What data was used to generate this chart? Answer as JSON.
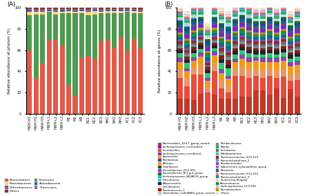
{
  "categories": [
    "HWH-H1",
    "HWH-H2",
    "HWH-H3",
    "HWH-L1",
    "HWH-L2",
    "HWH-L3",
    "M1",
    "M2",
    "M3",
    "NC1",
    "NC2",
    "NC3",
    "NH1",
    "NH2",
    "NH3",
    "PC1",
    "PC2",
    "PC3"
  ],
  "panel_A": {
    "title": "(A)",
    "ylabel": "Relative abundance at phylum (%)",
    "series_order": [
      "Bacteroidetes",
      "Firmicutes",
      "Proteobacteria",
      "Actinobacteria",
      "Deferribacteres",
      "Tenericutes",
      "Others"
    ],
    "series": {
      "Bacteroidetes": [
        60,
        34,
        48,
        70,
        70,
        65,
        27,
        17,
        53,
        55,
        52,
        69,
        70,
        63,
        72,
        60,
        71,
        62
      ],
      "Firmicutes": [
        33,
        60,
        46,
        26,
        24,
        30,
        68,
        78,
        42,
        38,
        42,
        26,
        25,
        32,
        23,
        36,
        24,
        33
      ],
      "Proteobacteria": [
        3,
        2,
        2,
        1,
        2,
        1,
        2,
        1,
        2,
        3,
        3,
        1,
        2,
        2,
        2,
        1,
        2,
        1
      ],
      "Actinobacteria": [
        2,
        1,
        1,
        1,
        1,
        2,
        1,
        1,
        1,
        1,
        1,
        1,
        1,
        1,
        1,
        1,
        1,
        1
      ],
      "Deferribacteres": [
        0.5,
        0.5,
        0.5,
        0.5,
        0.5,
        0.5,
        0.5,
        0.5,
        0.5,
        0.5,
        1,
        0.5,
        0.5,
        0.5,
        0.5,
        0.5,
        0.5,
        0.5
      ],
      "Tenericutes": [
        0.5,
        0.5,
        0.5,
        0.5,
        0.5,
        0.5,
        0.5,
        0.5,
        0.5,
        1,
        0.5,
        0.5,
        0.5,
        0.5,
        0.5,
        0.5,
        0.5,
        0.5
      ],
      "Others": [
        1,
        2,
        2,
        1.5,
        2,
        1.5,
        1,
        2.5,
        1,
        2,
        1,
        2,
        1,
        1,
        1.5,
        1.5,
        1,
        2.5
      ]
    },
    "colors": {
      "Bacteroidetes": "#E05A4A",
      "Firmicutes": "#4E9A51",
      "Proteobacteria": "#F0DC78",
      "Actinobacteria": "#3B5BA8",
      "Deferribacteres": "#7B5EA7",
      "Tenericutes": "#9B6EA7",
      "Others": "#8B3A2A"
    },
    "legend_order": [
      "Bacteroidetes",
      "Proteobacteria",
      "Deferribacteres",
      "Others",
      "Firmicutes",
      "Actinobacteria",
      "Tenericutes"
    ]
  },
  "panel_B": {
    "title": "(B)",
    "ylabel": "Relative abundance at genus (%)",
    "series_order": [
      "Bacteroidales_S24-7_group_norank",
      "Lactobacillus",
      "Bacteroides",
      "Alistipes",
      "Prevotellaceae_UCG-001",
      "Lachnospiraceae_NK4A136_group",
      "Alloprevotella",
      "Ruminococcus_1",
      "Muribaculaceae",
      "Turicibacter",
      "Ruminococcaceae_UCG-014",
      "Parabacteroides",
      "Roseburia",
      "Ruminoclostridiium_9",
      "Anaerostuncus",
      "Faecalibaculum",
      "Lachnospiraceae_unclassified",
      "Lachnospiraceae_uncultured",
      "Romboutsia",
      "Odoribacter",
      "Prevotellaceae_RCl_gut_group",
      "Helicobacter",
      "Desulfovibrio",
      "Clostridiales_vadinBB60_group_norank",
      "Blautia",
      "Bifidobacterium",
      "Ruminoclostridiium_5",
      "Eubacterium_xylanophilum_group",
      "Ruminococcaceae_UCG-013",
      "Escherichia-Shigella",
      "Lachnospiraceae_UCG-001",
      "Others"
    ],
    "series": {
      "Bacteroidales_S24-7_group_norank": [
        14,
        14,
        13,
        19,
        0,
        18,
        14,
        14,
        14,
        16,
        16,
        22,
        22,
        18,
        24,
        15,
        23,
        16
      ],
      "Lactobacillus": [
        20,
        12,
        24,
        18,
        20,
        22,
        10,
        6,
        22,
        20,
        18,
        14,
        12,
        18,
        10,
        20,
        8,
        16
      ],
      "Bacteroides": [
        8,
        8,
        7,
        9,
        6,
        8,
        8,
        7,
        7,
        9,
        8,
        7,
        8,
        7,
        8,
        8,
        7,
        7
      ],
      "Alistipes": [
        7,
        6,
        6,
        8,
        5,
        7,
        6,
        6,
        6,
        7,
        7,
        7,
        7,
        6,
        7,
        7,
        7,
        7
      ],
      "Prevotellaceae_UCG-001": [
        4,
        3,
        3,
        4,
        3,
        4,
        4,
        3,
        3,
        4,
        4,
        3,
        4,
        4,
        4,
        4,
        4,
        4
      ],
      "Lachnospiraceae_NK4A136_group": [
        4,
        5,
        4,
        3,
        4,
        3,
        6,
        7,
        4,
        4,
        4,
        3,
        3,
        4,
        3,
        4,
        3,
        4
      ],
      "Alloprevotella": [
        3,
        3,
        3,
        4,
        3,
        3,
        3,
        3,
        3,
        3,
        3,
        4,
        4,
        3,
        4,
        3,
        4,
        3
      ],
      "Ruminococcus_1": [
        2,
        3,
        3,
        2,
        3,
        2,
        4,
        5,
        3,
        3,
        3,
        2,
        2,
        3,
        2,
        3,
        2,
        3
      ],
      "Muribaculaceae": [
        2,
        2,
        2,
        2,
        0,
        2,
        2,
        2,
        2,
        2,
        2,
        2,
        2,
        2,
        2,
        2,
        2,
        2
      ],
      "Turicibacter": [
        2,
        2,
        2,
        1,
        2,
        1,
        2,
        2,
        2,
        2,
        2,
        2,
        2,
        2,
        2,
        2,
        2,
        2
      ],
      "Ruminococcaceae_UCG-014": [
        2,
        2,
        2,
        2,
        2,
        2,
        3,
        3,
        2,
        2,
        2,
        2,
        2,
        2,
        2,
        2,
        2,
        2
      ],
      "Parabacteroides": [
        2,
        2,
        2,
        2,
        2,
        2,
        2,
        2,
        2,
        2,
        2,
        2,
        2,
        2,
        2,
        2,
        2,
        2
      ],
      "Roseburia": [
        2,
        3,
        2,
        2,
        3,
        2,
        3,
        4,
        2,
        2,
        2,
        2,
        2,
        3,
        2,
        2,
        2,
        2
      ],
      "Ruminoclostridiium_9": [
        2,
        2,
        2,
        2,
        2,
        2,
        2,
        2,
        2,
        2,
        2,
        2,
        2,
        2,
        2,
        2,
        2,
        2
      ],
      "Anaerostuncus": [
        1,
        2,
        2,
        1,
        2,
        1,
        2,
        2,
        2,
        2,
        2,
        1,
        1,
        2,
        1,
        2,
        1,
        2
      ],
      "Faecalibaculum": [
        2,
        2,
        2,
        2,
        2,
        2,
        2,
        2,
        2,
        2,
        2,
        2,
        2,
        2,
        2,
        2,
        2,
        2
      ],
      "Lachnospiraceae_unclassified": [
        3,
        3,
        3,
        3,
        3,
        3,
        3,
        3,
        3,
        3,
        3,
        3,
        3,
        3,
        3,
        3,
        3,
        3
      ],
      "Lachnospiraceae_uncultured": [
        2,
        2,
        2,
        2,
        2,
        2,
        3,
        3,
        2,
        2,
        2,
        2,
        2,
        2,
        2,
        2,
        2,
        2
      ],
      "Romboutsia": [
        2,
        2,
        2,
        1,
        2,
        1,
        2,
        2,
        2,
        2,
        2,
        1,
        1,
        2,
        1,
        2,
        1,
        2
      ],
      "Odoribacter": [
        2,
        2,
        2,
        2,
        2,
        2,
        2,
        2,
        2,
        2,
        2,
        2,
        2,
        2,
        2,
        2,
        2,
        2
      ],
      "Prevotellaceae_RCl_gut_group": [
        2,
        2,
        2,
        2,
        2,
        2,
        2,
        2,
        2,
        2,
        2,
        2,
        2,
        2,
        2,
        2,
        2,
        2
      ],
      "Helicobacter": [
        1,
        1,
        1,
        1,
        1,
        1,
        1,
        1,
        1,
        1,
        1,
        1,
        1,
        1,
        1,
        1,
        1,
        1
      ],
      "Desulfovibrio": [
        1,
        1,
        1,
        1,
        1,
        1,
        1,
        1,
        1,
        1,
        1,
        1,
        1,
        1,
        1,
        1,
        1,
        1
      ],
      "Clostridiales_vadinBB60_group_norank": [
        1,
        2,
        2,
        1,
        2,
        1,
        2,
        2,
        1,
        1,
        2,
        1,
        1,
        2,
        1,
        1,
        1,
        2
      ],
      "Blautia": [
        2,
        2,
        2,
        2,
        2,
        2,
        2,
        2,
        2,
        2,
        2,
        2,
        2,
        2,
        2,
        2,
        2,
        2
      ],
      "Bifidobacterium": [
        1,
        1,
        1,
        1,
        1,
        1,
        1,
        1,
        1,
        1,
        1,
        1,
        1,
        1,
        1,
        1,
        1,
        1
      ],
      "Ruminoclostridiium_5": [
        1,
        1,
        1,
        1,
        1,
        1,
        1,
        1,
        1,
        1,
        1,
        1,
        1,
        1,
        1,
        1,
        1,
        1
      ],
      "Eubacterium_xylanophilum_group": [
        1,
        1,
        1,
        1,
        1,
        1,
        1,
        1,
        1,
        1,
        1,
        1,
        1,
        1,
        1,
        1,
        1,
        1
      ],
      "Ruminococcaceae_UCG-013": [
        1,
        1,
        1,
        1,
        1,
        1,
        1,
        1,
        1,
        1,
        1,
        1,
        1,
        1,
        1,
        1,
        1,
        1
      ],
      "Escherichia-Shigella": [
        1,
        1,
        1,
        1,
        1,
        1,
        1,
        1,
        1,
        1,
        1,
        1,
        1,
        1,
        1,
        1,
        1,
        1
      ],
      "Lachnospiraceae_UCG-001": [
        1,
        1,
        1,
        1,
        1,
        1,
        1,
        1,
        1,
        1,
        1,
        1,
        1,
        1,
        1,
        1,
        1,
        1
      ],
      "Others": [
        3,
        3,
        3,
        3,
        3,
        3,
        3,
        3,
        3,
        3,
        3,
        3,
        3,
        3,
        3,
        3,
        3,
        3
      ]
    },
    "colors": {
      "Bacteroidales_S24-7_group_norank": "#C0392B",
      "Lactobacillus": "#E74C3C",
      "Bacteroides": "#E8976A",
      "Alistipes": "#F39C12",
      "Prevotellaceae_UCG-001": "#8E44AD",
      "Lachnospiraceae_NK4A136_group": "#2ECC71",
      "Alloprevotella": "#1A252F",
      "Ruminococcus_1": "#7B241C",
      "Muribaculaceae": "#7F8C8D",
      "Turicibacter": "#5D6D7E",
      "Ruminococcaceae_UCG-014": "#922B21",
      "Parabacteroides": "#884EA0",
      "Roseburia": "#1F618D",
      "Ruminoclostridiium_9": "#148F77",
      "Anaerostuncus": "#1E8449",
      "Faecalibaculum": "#B7950B",
      "Lachnospiraceae_unclassified": "#6E2FBF",
      "Lachnospiraceae_uncultured": "#7D3C98",
      "Romboutsia": "#21618C",
      "Odoribacter": "#1A5276",
      "Prevotellaceae_RCl_gut_group": "#0E6655",
      "Helicobacter": "#4FC3F7",
      "Desulfovibrio": "#F9E79F",
      "Clostridiales_vadinBB60_group_norank": "#A9CCE3",
      "Blautia": "#27AE60",
      "Bifidobacterium": "#52BE80",
      "Ruminoclostridiium_5": "#5499C7",
      "Eubacterium_xylanophilum_group": "#A569BD",
      "Ruminococcaceae_UCG-013": "#F1948A",
      "Escherichia-Shigella": "#FAD7A0",
      "Lachnospiraceae_UCG-001": "#D2B4DE",
      "Others": "#F0E6C8"
    },
    "legend_order": [
      "Bacteroidales_S24-7_group_norank",
      "Lachnospiraceae_unclassified",
      "Lactobacillus",
      "Lachnospiraceae_uncultured",
      "Bacteroides",
      "Romboutsia",
      "Alistipes",
      "Odoribacter",
      "Prevotellaceae_UCG-001",
      "Prevotellaceae_RCl_gut_group",
      "Lachnospiraceae_NK4A136_group",
      "Helicobacter",
      "Alloprevotella",
      "Desulfovibrio",
      "Ruminococcus_1",
      "Clostridiales_vadinBB60_group_norank",
      "Muribaculaceae",
      "Blautia",
      "Turicibacter",
      "Bifidobacterium",
      "Ruminococcaceae_UCG-014",
      "Ruminoclostridiium_5",
      "Parabacteroides",
      "Eubacterium_xylanophilum_group",
      "Roseburia",
      "Ruminococcaceae_UCG-013",
      "Ruminoclostridiium_9",
      "Escherichia-Shigella",
      "Anaerostuncus",
      "Lachnospiraceae_UCG-001",
      "Faecalibaculum",
      "Others"
    ]
  },
  "background_color": "#ffffff"
}
